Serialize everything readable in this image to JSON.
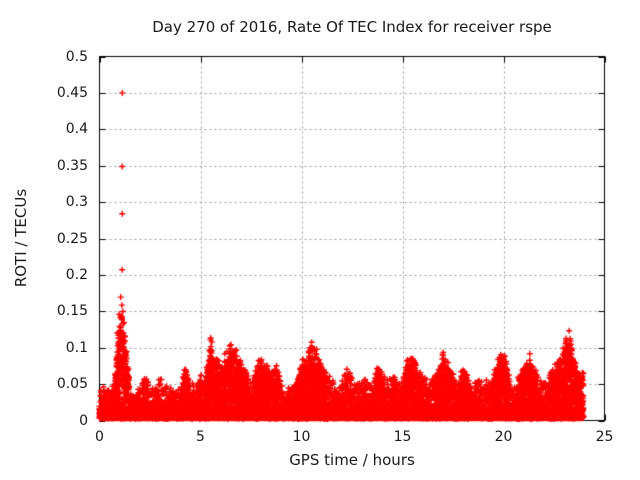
{
  "page": {
    "background": "#ffffff",
    "text_color": "#1a1a1a"
  },
  "chart_data": {
    "type": "scatter",
    "title": "Day 270 of 2016, Rate Of TEC Index for receiver rspe",
    "xlabel": "GPS time / hours",
    "ylabel": "ROTI / TECUs",
    "xlim": [
      0,
      25
    ],
    "ylim": [
      0,
      0.5
    ],
    "xticks": [
      {
        "v": 0,
        "label": "0"
      },
      {
        "v": 5,
        "label": "5"
      },
      {
        "v": 10,
        "label": "10"
      },
      {
        "v": 15,
        "label": "15"
      },
      {
        "v": 20,
        "label": "20"
      },
      {
        "v": 25,
        "label": "25"
      }
    ],
    "yticks": [
      {
        "v": 0,
        "label": "0"
      },
      {
        "v": 0.05,
        "label": "0.05"
      },
      {
        "v": 0.1,
        "label": "0.1"
      },
      {
        "v": 0.15,
        "label": "0.15"
      },
      {
        "v": 0.2,
        "label": "0.2"
      },
      {
        "v": 0.25,
        "label": "0.25"
      },
      {
        "v": 0.3,
        "label": "0.3"
      },
      {
        "v": 0.35,
        "label": "0.35"
      },
      {
        "v": 0.4,
        "label": "0.4"
      },
      {
        "v": 0.45,
        "label": "0.45"
      },
      {
        "v": 0.5,
        "label": "0.5"
      }
    ],
    "grid": {
      "show": true,
      "color": "#9c9c9c",
      "dash": [
        2,
        3
      ]
    },
    "axis_color": "#000000",
    "marker": {
      "shape": "plus",
      "color": "#ff0000",
      "size": 7
    },
    "data_start_hour": 0,
    "data_end_hour": 23.95,
    "baseline_min": 0.003,
    "envelope_step_hours": 0.25,
    "envelope_max": [
      0.04,
      0.045,
      0.038,
      0.05,
      0.16,
      0.12,
      0.04,
      0.032,
      0.045,
      0.058,
      0.042,
      0.05,
      0.055,
      0.045,
      0.042,
      0.036,
      0.042,
      0.07,
      0.05,
      0.046,
      0.058,
      0.052,
      0.105,
      0.08,
      0.068,
      0.085,
      0.095,
      0.088,
      0.075,
      0.06,
      0.052,
      0.065,
      0.08,
      0.072,
      0.062,
      0.068,
      0.046,
      0.04,
      0.046,
      0.052,
      0.075,
      0.08,
      0.098,
      0.088,
      0.068,
      0.062,
      0.05,
      0.046,
      0.052,
      0.064,
      0.055,
      0.046,
      0.052,
      0.056,
      0.046,
      0.066,
      0.058,
      0.05,
      0.06,
      0.055,
      0.052,
      0.08,
      0.085,
      0.062,
      0.055,
      0.05,
      0.055,
      0.06,
      0.085,
      0.07,
      0.056,
      0.05,
      0.065,
      0.055,
      0.05,
      0.055,
      0.05,
      0.048,
      0.055,
      0.08,
      0.085,
      0.06,
      0.048,
      0.055,
      0.07,
      0.085,
      0.065,
      0.055,
      0.05,
      0.058,
      0.065,
      0.08,
      0.09,
      0.118,
      0.075,
      0.06
    ],
    "outliers": [
      [
        1.13,
        0.45
      ],
      [
        1.12,
        0.349
      ],
      [
        1.13,
        0.284
      ],
      [
        1.12,
        0.207
      ]
    ]
  }
}
